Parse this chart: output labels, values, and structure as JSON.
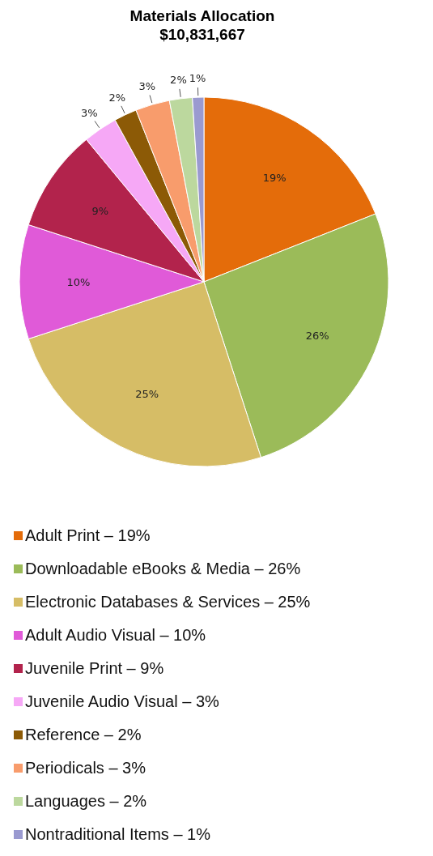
{
  "chart_data": {
    "type": "pie",
    "title": "Materials Allocation\n$10,831,667",
    "categories": [
      "Adult Print – 19%",
      "Downloadable eBooks & Media – 26%",
      "Electronic Databases & Services – 25%",
      "Adult Audio Visual – 10%",
      "Juvenile Print – 9%",
      "Juvenile Audio Visual – 3%",
      "Reference – 2%",
      "Periodicals – 3%",
      "Languages – 2%",
      "Nontraditional Items – 1%"
    ],
    "values": [
      19,
      26,
      25,
      10,
      9,
      3,
      2,
      3,
      2,
      1
    ],
    "value_labels": [
      "19%",
      "26%",
      "25%",
      "10%",
      "9%",
      "3%",
      "2%",
      "3%",
      "2%",
      "1%"
    ],
    "colors": [
      "#e46c0a",
      "#9bbb59",
      "#d6bd66",
      "#e05ad8",
      "#b2234c",
      "#f6a8f6",
      "#8c5a06",
      "#f89c6c",
      "#bcd89e",
      "#9a9ad0"
    ],
    "legend": "bottom"
  }
}
